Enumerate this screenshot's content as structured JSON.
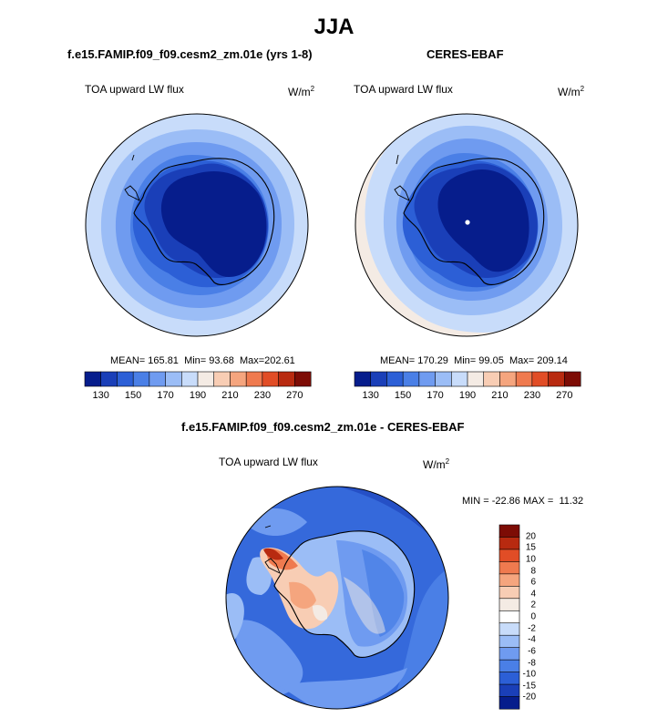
{
  "page": {
    "title": "JJA"
  },
  "panels": [
    {
      "case_name": "f.e15.FAMIP.f09_f09.cesm2_zm.01e (yrs 1-8)",
      "variable": "TOA upward LW flux",
      "units_base": "W/m",
      "units_exp": "2",
      "stats": {
        "mean_label": "MEAN=",
        "mean": "165.81",
        "min_label": "Min=",
        "min": "93.68",
        "max_label": "Max=",
        "max": "202.61"
      },
      "colorbar_ticks": [
        "130",
        "150",
        "170",
        "190",
        "210",
        "230",
        "250",
        "270"
      ]
    },
    {
      "case_name": "CERES-EBAF",
      "variable": "TOA upward LW flux",
      "units_base": "W/m",
      "units_exp": "2",
      "stats": {
        "mean_label": "MEAN=",
        "mean": "170.29",
        "min_label": "Min=",
        "min": "99.05",
        "max_label": "Max=",
        "max": "209.14"
      },
      "colorbar_ticks": [
        "130",
        "150",
        "170",
        "190",
        "210",
        "230",
        "250",
        "270"
      ]
    }
  ],
  "difference": {
    "title": "f.e15.FAMIP.f09_f09.cesm2_zm.01e - CERES-EBAF",
    "variable": "TOA upward LW flux",
    "units_base": "W/m",
    "units_exp": "2",
    "minmax": {
      "min_label": "MIN =",
      "min": "-22.86",
      "max_label": "MAX =",
      "max": "11.32"
    },
    "colorbar_ticks": [
      "20",
      "15",
      "10",
      "8",
      "6",
      "4",
      "2",
      "0",
      "-2",
      "-4",
      "-6",
      "-8",
      "-10",
      "-15",
      "-20"
    ]
  },
  "colors": {
    "seq": [
      "#061d8c",
      "#1a3fb8",
      "#2c5fd6",
      "#4a7fe6",
      "#6f9bf0",
      "#9bbdf6",
      "#c8dcfa",
      "#f4ebe4",
      "#f8cdb4",
      "#f5a57e",
      "#ef7a4f",
      "#e14d26",
      "#b82a10",
      "#7d0c05"
    ],
    "div": [
      "#7d0c05",
      "#b82a10",
      "#e14d26",
      "#ef7a4f",
      "#f5a57e",
      "#f8cdb4",
      "#f4ebe4",
      "#ffffff",
      "#c8dcfa",
      "#9bbdf6",
      "#6f9bf0",
      "#4a7fe6",
      "#2c5fd6",
      "#1a3fb8",
      "#061d8c"
    ]
  },
  "chart_data": [
    {
      "type": "heatmap",
      "projection": "south polar stereographic",
      "title": "f.e15.FAMIP.f09_f09.cesm2_zm.01e (yrs 1-8)",
      "field": "TOA upward LW flux",
      "units": "W/m2",
      "season": "JJA",
      "mean": 165.81,
      "min": 93.68,
      "max": 202.61,
      "contour_levels": [
        130,
        140,
        150,
        160,
        170,
        180,
        190,
        200,
        210,
        220,
        230,
        240,
        250,
        260,
        270
      ],
      "colorbar_ticks": [
        130,
        150,
        170,
        190,
        210,
        230,
        250,
        270
      ]
    },
    {
      "type": "heatmap",
      "projection": "south polar stereographic",
      "title": "CERES-EBAF",
      "field": "TOA upward LW flux",
      "units": "W/m2",
      "season": "JJA",
      "mean": 170.29,
      "min": 99.05,
      "max": 209.14,
      "contour_levels": [
        130,
        140,
        150,
        160,
        170,
        180,
        190,
        200,
        210,
        220,
        230,
        240,
        250,
        260,
        270
      ],
      "colorbar_ticks": [
        130,
        150,
        170,
        190,
        210,
        230,
        250,
        270
      ]
    },
    {
      "type": "heatmap",
      "projection": "south polar stereographic",
      "title": "f.e15.FAMIP.f09_f09.cesm2_zm.01e - CERES-EBAF",
      "field": "TOA upward LW flux",
      "units": "W/m2",
      "season": "JJA",
      "min": -22.86,
      "max": 11.32,
      "contour_levels": [
        -20,
        -15,
        -10,
        -8,
        -6,
        -4,
        -2,
        0,
        2,
        4,
        6,
        8,
        10,
        15,
        20
      ],
      "colorbar_ticks": [
        20,
        15,
        10,
        8,
        6,
        4,
        2,
        0,
        -2,
        -4,
        -6,
        -8,
        -10,
        -15,
        -20
      ]
    }
  ]
}
